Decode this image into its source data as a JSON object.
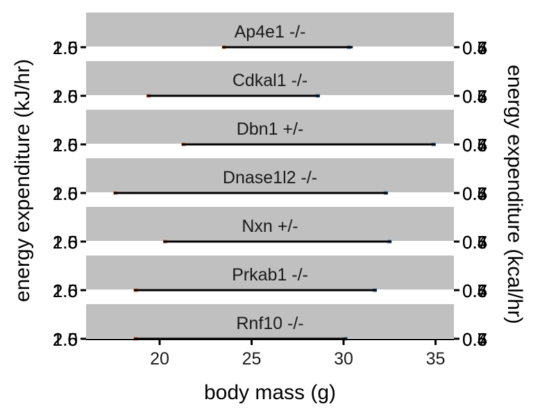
{
  "chart_data": {
    "type": "line",
    "xlabel": "body mass (g)",
    "ylabel_left": "energy expenditure (kJ/hr)",
    "ylabel_right": "energy expenditure (kcal/hr)",
    "xlim": [
      16,
      36
    ],
    "x_ticks": [
      20,
      25,
      30,
      35
    ],
    "left_tick_labels": [
      "2.6",
      "2.0",
      "1.5"
    ],
    "right_tick_labels": [
      "0.7",
      "0.6",
      "0.5",
      "0.4"
    ],
    "colors": {
      "strip_background": "#c0c0c0",
      "line": "#000000",
      "series_orange": "#e8743b",
      "series_blue": "#3a88c8"
    },
    "panels": [
      {
        "label": "Ap4e1 -/-",
        "x_range": [
          23.4,
          30.5
        ],
        "orange_x": 23.5,
        "blue_x": 30.3
      },
      {
        "label": "Cdkal1 -/-",
        "x_range": [
          19.3,
          28.7
        ],
        "orange_x": 19.4,
        "blue_x": 28.6
      },
      {
        "label": "Dbn1 +/-",
        "x_range": [
          21.2,
          35.0
        ],
        "orange_x": 21.3,
        "blue_x": 34.9
      },
      {
        "label": "Dnase1l2 -/-",
        "x_range": [
          17.5,
          32.4
        ],
        "orange_x": 17.6,
        "blue_x": 32.3
      },
      {
        "label": "Nxn +/-",
        "x_range": [
          20.2,
          32.6
        ],
        "orange_x": 20.3,
        "blue_x": 32.5
      },
      {
        "label": "Prkab1 -/-",
        "x_range": [
          18.6,
          31.8
        ],
        "orange_x": 18.7,
        "blue_x": 31.7
      },
      {
        "label": "Rnf10 -/-",
        "x_range": [
          18.6,
          30.2
        ],
        "orange_x": 18.7,
        "blue_x": 30.1
      }
    ]
  }
}
